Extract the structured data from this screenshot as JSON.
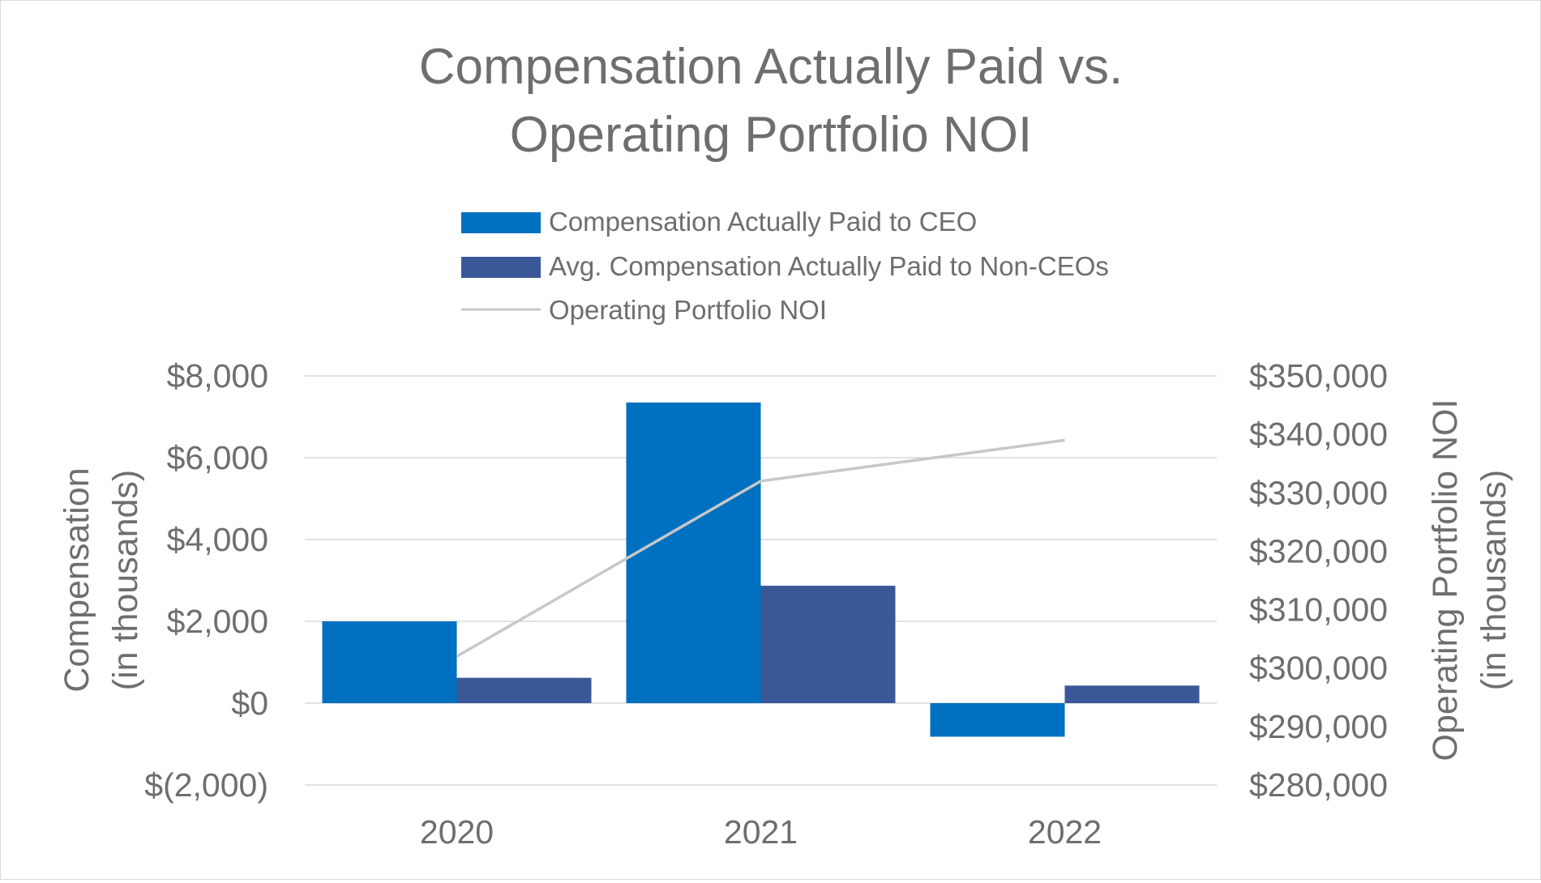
{
  "colors": {
    "ceo": "#0070C0",
    "non_ceo": "#3A5897",
    "noi_line": "#C8C8C8",
    "gridline": "#D9D9D9",
    "text": "#6E6E6E"
  },
  "chart_data": {
    "type": "bar",
    "title_lines": [
      "Compensation Actually Paid vs.",
      "Operating Portfolio NOI"
    ],
    "categories": [
      "2020",
      "2021",
      "2022"
    ],
    "series": [
      {
        "name": "Compensation Actually Paid to CEO",
        "kind": "bar",
        "axis": "left",
        "values": [
          2000,
          7350,
          -820
        ]
      },
      {
        "name": "Avg. Compensation Actually Paid to Non-CEOs",
        "kind": "bar",
        "axis": "left",
        "values": [
          620,
          2870,
          430
        ]
      }
    ],
    "line_series": {
      "name": "Operating Portfolio NOI",
      "kind": "line",
      "axis": "right",
      "values": [
        302000,
        332000,
        339000
      ]
    },
    "left_axis": {
      "label_lines": [
        "Compensation",
        "(in thousands)"
      ],
      "range": [
        -2000,
        8000
      ],
      "ticks": [
        8000,
        6000,
        4000,
        2000,
        0,
        -2000
      ],
      "tick_labels": [
        "$8,000",
        "$6,000",
        "$4,000",
        "$2,000",
        "$0",
        "$(2,000)"
      ]
    },
    "right_axis": {
      "label_lines": [
        "Operating Portfolio NOI",
        "(in thousands)"
      ],
      "range": [
        280000,
        350000
      ],
      "ticks": [
        350000,
        340000,
        330000,
        320000,
        310000,
        300000,
        290000,
        280000
      ],
      "tick_labels": [
        "$350,000",
        "$340,000",
        "$330,000",
        "$320,000",
        "$310,000",
        "$300,000",
        "$290,000",
        "$280,000"
      ]
    },
    "legend": {
      "position": "top-center",
      "entries": [
        "Compensation Actually Paid to CEO",
        "Avg. Compensation Actually Paid to Non-CEOs",
        "Operating Portfolio NOI"
      ]
    },
    "gridlines": true
  }
}
